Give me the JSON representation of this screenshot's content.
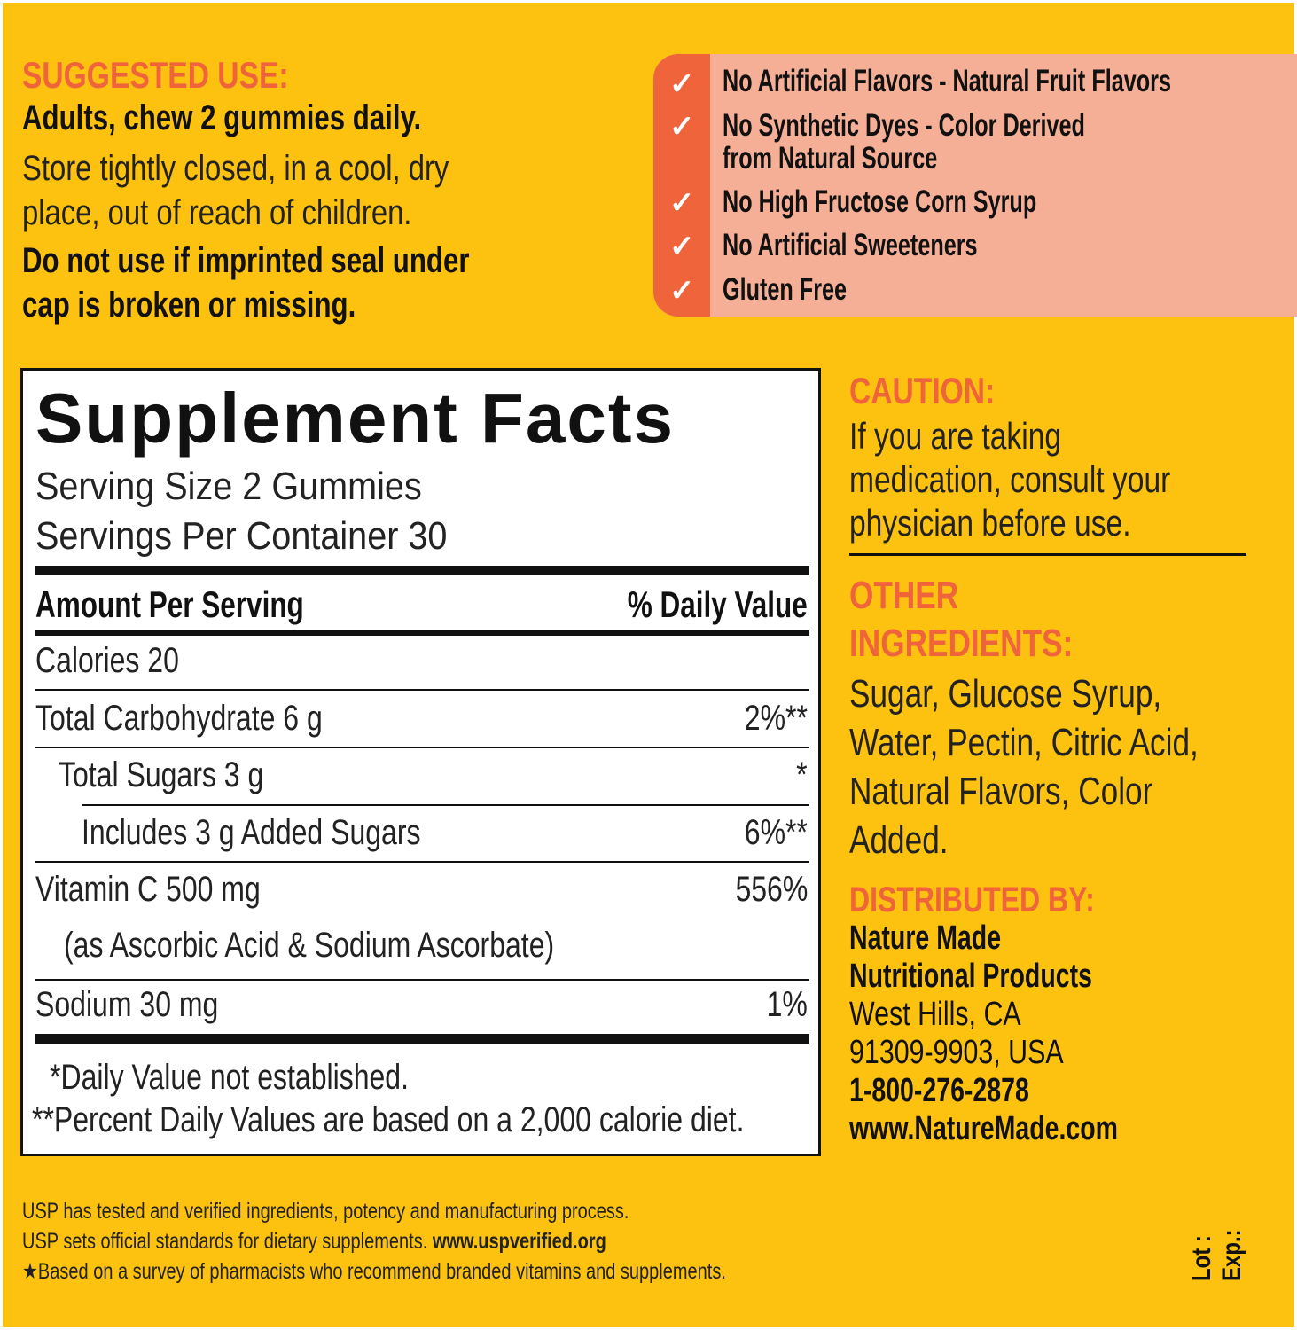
{
  "colors": {
    "background": "#FDC210",
    "accent": "#F0643C",
    "claims_panel": "#F6AF97"
  },
  "suggested_use": {
    "heading": "SUGGESTED USE:",
    "dose": "Adults, chew 2 gummies daily.",
    "storage": [
      "Store tightly closed, in a cool, dry",
      "place, out of reach of children."
    ],
    "warning": [
      "Do not use if imprinted seal under",
      "cap is broken or  missing."
    ]
  },
  "claims": [
    {
      "icon": "check-icon",
      "lines": [
        "No Artificial Flavors - Natural Fruit Flavors"
      ]
    },
    {
      "icon": "check-icon",
      "lines": [
        "No Synthetic Dyes - Color Derived",
        "from Natural Source"
      ]
    },
    {
      "icon": "check-icon",
      "lines": [
        "No High Fructose Corn Syrup"
      ]
    },
    {
      "icon": "check-icon",
      "lines": [
        "No Artificial Sweeteners"
      ]
    },
    {
      "icon": "check-icon",
      "lines": [
        "Gluten Free"
      ]
    }
  ],
  "facts": {
    "title": "Supplement Facts",
    "serving_size": "Serving Size 2 Gummies",
    "servings_per_container": "Servings Per Container 30",
    "amount_header": "Amount Per Serving",
    "dv_header": "% Daily Value",
    "rows": [
      {
        "label": "Calories  20",
        "dv": ""
      },
      {
        "label": "Total Carbohydrate  6 g",
        "dv": "2%**"
      },
      {
        "label": "Total Sugars  3 g",
        "dv": "*"
      },
      {
        "label": "Includes 3 g Added Sugars",
        "dv": "6%**"
      },
      {
        "label": "Vitamin C  500 mg",
        "dv": "556%",
        "sub": "(as Ascorbic Acid & Sodium Ascorbate)"
      },
      {
        "label": "Sodium  30 mg",
        "dv": "1%"
      }
    ],
    "footnotes": [
      "*Daily Value not established.",
      "**Percent Daily Values are based on a 2,000 calorie diet."
    ]
  },
  "caution": {
    "heading": "CAUTION:",
    "lines": [
      "If you are taking",
      "medication, consult your",
      "physician before use."
    ]
  },
  "other_ingredients": {
    "heading": [
      "OTHER",
      "INGREDIENTS:"
    ],
    "lines": [
      "Sugar, Glucose Syrup,",
      "Water, Pectin, Citric Acid,",
      "Natural Flavors, Color",
      "Added."
    ]
  },
  "distributed_by": {
    "heading": "DISTRIBUTED BY:",
    "name": [
      "Nature Made",
      "Nutritional Products"
    ],
    "address": [
      "West Hills, CA",
      "91309-9903, USA"
    ],
    "phone": "1-800-276-2878",
    "website": "www.NatureMade.com"
  },
  "usp": {
    "lines": [
      "USP has tested and verified ingredients, potency and manufacturing process.",
      "USP sets official standards for dietary supplements. "
    ],
    "link": "www.uspverified.org",
    "survey": "★Based on a survey of pharmacists who recommend branded vitamins and supplements."
  },
  "lot": "Lot :",
  "exp": "Exp.:"
}
